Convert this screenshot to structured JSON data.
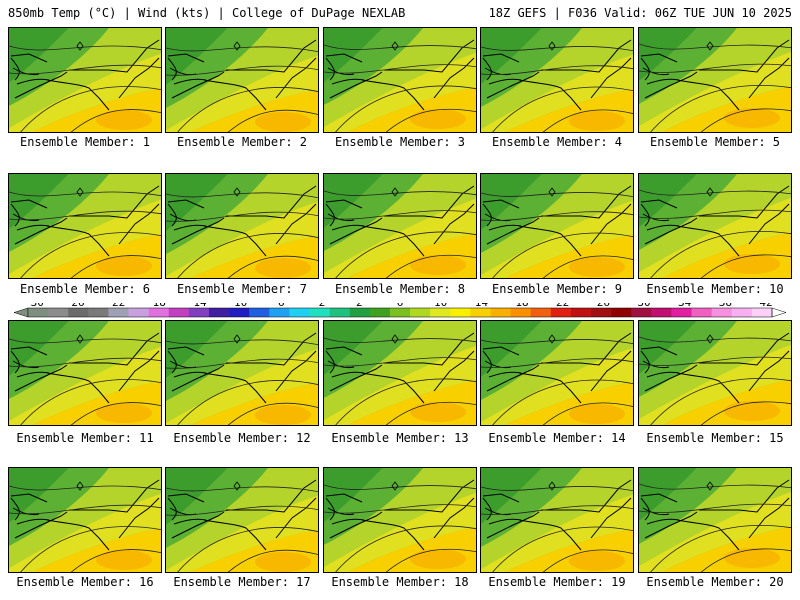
{
  "header": {
    "left_title": "850mb Temp (°C) | Wind (kts) | College of DuPage NEXLAB",
    "right_title": "18Z GEFS | F036 Valid: 06Z TUE JUN 10 2025"
  },
  "panels": [
    {
      "label": "Ensemble Member: 1"
    },
    {
      "label": "Ensemble Member: 2"
    },
    {
      "label": "Ensemble Member: 3"
    },
    {
      "label": "Ensemble Member: 4"
    },
    {
      "label": "Ensemble Member: 5"
    },
    {
      "label": "Ensemble Member: 6"
    },
    {
      "label": "Ensemble Member: 7"
    },
    {
      "label": "Ensemble Member: 8"
    },
    {
      "label": "Ensemble Member: 9"
    },
    {
      "label": "Ensemble Member: 10"
    },
    {
      "label": "Ensemble Member: 11"
    },
    {
      "label": "Ensemble Member: 12"
    },
    {
      "label": "Ensemble Member: 13"
    },
    {
      "label": "Ensemble Member: 14"
    },
    {
      "label": "Ensemble Member: 15"
    },
    {
      "label": "Ensemble Member: 16"
    },
    {
      "label": "Ensemble Member: 17"
    },
    {
      "label": "Ensemble Member: 18"
    },
    {
      "label": "Ensemble Member: 19"
    },
    {
      "label": "Ensemble Member: 20"
    }
  ],
  "colorbar": {
    "labels": [
      "−30",
      "−26",
      "−22",
      "−18",
      "−14",
      "−10",
      "−6",
      "−2",
      "2",
      "6",
      "10",
      "14",
      "18",
      "22",
      "26",
      "30",
      "34",
      "38",
      "42"
    ],
    "colors": [
      "#7f8f7f",
      "#8c8c8c",
      "#6c6c6c",
      "#7a7a7a",
      "#a0a0b4",
      "#c8a0e0",
      "#e070e0",
      "#c040c0",
      "#8040c0",
      "#4020a0",
      "#2020c0",
      "#2060e0",
      "#20a0f0",
      "#20d0f0",
      "#20e0c0",
      "#20c080",
      "#20a040",
      "#40a020",
      "#7cc020",
      "#b0d820",
      "#e0e820",
      "#f8f000",
      "#f8d000",
      "#f8b000",
      "#f89000",
      "#f06010",
      "#e02010",
      "#c01010",
      "#a01010",
      "#900000",
      "#a01040",
      "#c01070",
      "#e020a0",
      "#f060c0",
      "#f890e0",
      "#f8b0f0",
      "#fcd0f8"
    ]
  }
}
